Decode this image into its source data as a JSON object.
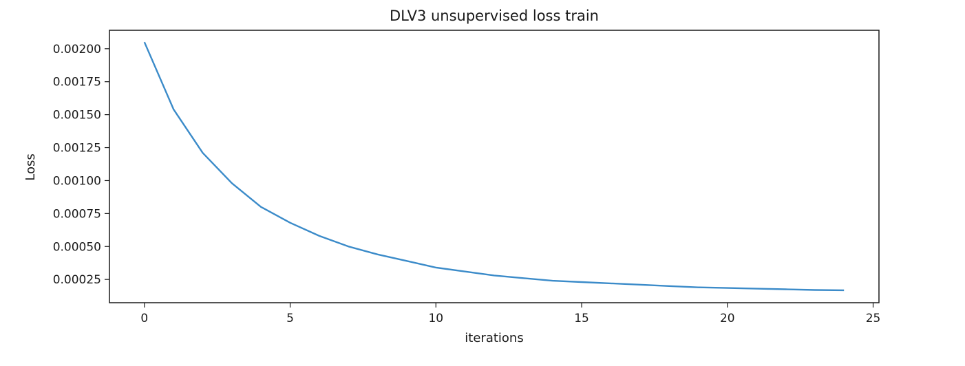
{
  "chart_data": {
    "type": "line",
    "title": "DLV3 unsupervised loss train",
    "xlabel": "iterations",
    "ylabel": "Loss",
    "xlim": [
      -1.2,
      25.2
    ],
    "ylim": [
      7.35e-05,
      0.00214
    ],
    "xticks": [
      0,
      5,
      10,
      15,
      20,
      25
    ],
    "xtick_labels": [
      "0",
      "5",
      "10",
      "15",
      "20",
      "25"
    ],
    "yticks": [
      0.00025,
      0.0005,
      0.00075,
      0.001,
      0.00125,
      0.0015,
      0.00175,
      0.002
    ],
    "ytick_labels": [
      "0.00025",
      "0.00050",
      "0.00075",
      "0.00100",
      "0.00125",
      "0.00150",
      "0.00175",
      "0.00200"
    ],
    "grid": false,
    "series": [
      {
        "color": "#3b8bc9",
        "x": [
          0,
          1,
          2,
          3,
          4,
          5,
          6,
          7,
          8,
          9,
          10,
          11,
          12,
          13,
          14,
          15,
          16,
          17,
          18,
          19,
          20,
          21,
          22,
          23,
          24
        ],
        "y": [
          0.00205,
          0.00154,
          0.00121,
          0.00098,
          0.0008,
          0.00068,
          0.00058,
          0.0005,
          0.00044,
          0.00039,
          0.00034,
          0.00031,
          0.00028,
          0.00026,
          0.00024,
          0.00023,
          0.00022,
          0.00021,
          0.0002,
          0.00019,
          0.000185,
          0.00018,
          0.000175,
          0.00017,
          0.000168
        ]
      }
    ]
  }
}
